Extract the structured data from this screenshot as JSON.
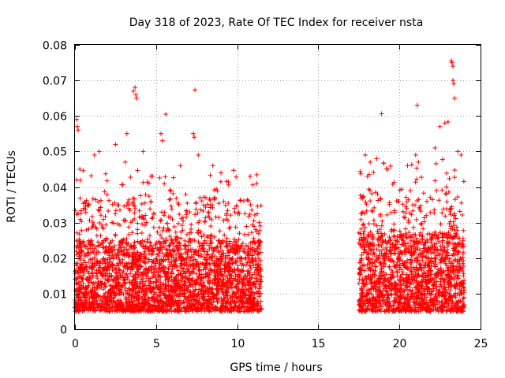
{
  "chart_data": {
    "type": "scatter",
    "title": "Day 318 of 2023, Rate Of TEC Index for receiver nsta",
    "xlabel": "GPS time / hours",
    "ylabel": "ROTI / TECUs",
    "xlim": [
      0,
      25
    ],
    "ylim": [
      0,
      0.08
    ],
    "x_ticks": [
      0,
      5,
      10,
      15,
      20,
      25
    ],
    "x_tick_labels": [
      "0",
      "5",
      "10",
      "15",
      "20",
      "25"
    ],
    "y_ticks": [
      0,
      0.01,
      0.02,
      0.03,
      0.04,
      0.05,
      0.06,
      0.07,
      0.08
    ],
    "y_tick_labels": [
      "0",
      "0.01",
      "0.02",
      "0.03",
      "0.04",
      "0.05",
      "0.06",
      "0.07",
      "0.08"
    ],
    "grid": true,
    "marker": "+",
    "series": [
      {
        "name": "ROTI",
        "color": "#ff0000",
        "segments": [
          {
            "x_range": [
              0.0,
              11.5
            ],
            "typical_range": [
              0.005,
              0.025
            ],
            "upper_spread": 0.045,
            "outliers": [
              [
                0.1,
                0.059
              ],
              [
                0.15,
                0.057
              ],
              [
                0.2,
                0.056
              ],
              [
                0.1,
                0.042
              ],
              [
                0.3,
                0.045
              ],
              [
                1.2,
                0.049
              ],
              [
                1.5,
                0.05
              ],
              [
                2.5,
                0.052
              ],
              [
                3.2,
                0.055
              ],
              [
                3.1,
                0.047
              ],
              [
                3.7,
                0.068
              ],
              [
                3.75,
                0.066
              ],
              [
                3.8,
                0.065
              ],
              [
                3.6,
                0.067
              ],
              [
                4.2,
                0.05
              ],
              [
                5.3,
                0.055
              ],
              [
                5.4,
                0.053
              ],
              [
                5.6,
                0.0605
              ],
              [
                6.5,
                0.046
              ],
              [
                7.3,
                0.055
              ],
              [
                7.35,
                0.054
              ],
              [
                7.4,
                0.0673
              ],
              [
                7.6,
                0.049
              ],
              [
                8.5,
                0.046
              ],
              [
                9.0,
                0.044
              ],
              [
                10.8,
                0.043
              ],
              [
                11.2,
                0.041
              ]
            ]
          },
          {
            "x_range": [
              17.5,
              24.0
            ],
            "typical_range": [
              0.005,
              0.027
            ],
            "upper_spread": 0.048,
            "outliers": [
              [
                17.9,
                0.049
              ],
              [
                18.2,
                0.047
              ],
              [
                18.6,
                0.048
              ],
              [
                18.9,
                0.0606
              ],
              [
                19.3,
                0.045
              ],
              [
                20.5,
                0.046
              ],
              [
                21.0,
                0.049
              ],
              [
                21.1,
                0.063
              ],
              [
                22.2,
                0.051
              ],
              [
                22.5,
                0.057
              ],
              [
                22.8,
                0.058
              ],
              [
                23.0,
                0.0583
              ],
              [
                23.2,
                0.0755
              ],
              [
                23.25,
                0.075
              ],
              [
                23.3,
                0.074
              ],
              [
                23.3,
                0.07
              ],
              [
                23.35,
                0.069
              ],
              [
                23.4,
                0.065
              ],
              [
                23.6,
                0.05
              ],
              [
                23.8,
                0.049
              ]
            ]
          }
        ]
      }
    ]
  }
}
